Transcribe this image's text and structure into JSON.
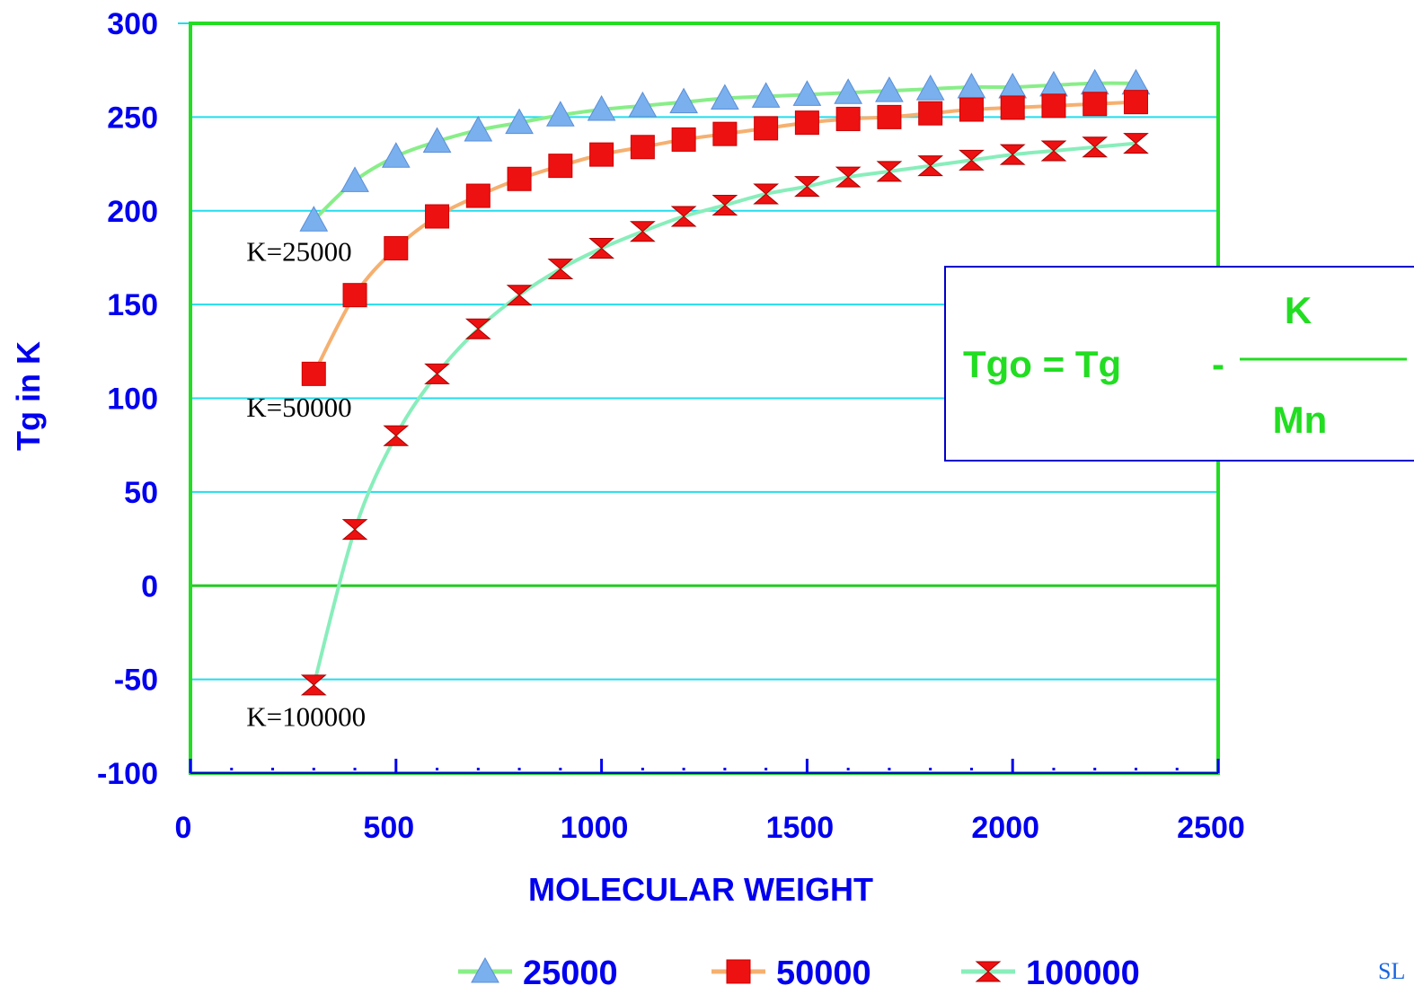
{
  "colors": {
    "plot_border": "#22dd22",
    "gridline": "#22ddee",
    "zero_line": "#22cc22",
    "axis_text": "#0000ee",
    "equation_box": "#0000cc",
    "equation_text": "#22dd22",
    "series_25000_line": "#88ee88",
    "series_25000_marker": "#7ab0ee",
    "series_50000_line": "#f5b070",
    "series_50000_marker": "#ee1111",
    "series_100000_line": "#88eebb",
    "series_100000_marker": "#ee1111"
  },
  "chart_data": {
    "type": "line",
    "xlabel": "MOLECULAR WEIGHT",
    "ylabel": "Tg in K",
    "xlim": [
      0,
      2500
    ],
    "ylim": [
      -100,
      300
    ],
    "xticks": [
      "0",
      "500",
      "1000",
      "1500",
      "2000",
      "2500"
    ],
    "yticks": [
      "300",
      "250",
      "200",
      "150",
      "100",
      "50",
      "0",
      "-50",
      "-100"
    ],
    "grid": true,
    "legend_position": "bottom",
    "x": [
      300,
      400,
      500,
      600,
      700,
      800,
      900,
      1000,
      1100,
      1200,
      1300,
      1400,
      1500,
      1600,
      1700,
      1800,
      1900,
      2000,
      2100,
      2200,
      2300
    ],
    "series": [
      {
        "name": "25000",
        "marker": "triangle",
        "values": [
          195,
          216,
          229,
          237,
          243,
          247,
          251,
          254,
          256,
          258,
          260,
          261,
          262,
          263,
          264,
          265,
          266,
          266,
          267,
          268,
          268
        ]
      },
      {
        "name": "50000",
        "marker": "square",
        "values": [
          113,
          155,
          180,
          197,
          208,
          217,
          224,
          230,
          234,
          238,
          241,
          244,
          247,
          249,
          250,
          252,
          254,
          255,
          256,
          257,
          258
        ]
      },
      {
        "name": "100000",
        "marker": "hourglass",
        "values": [
          -53,
          30,
          80,
          113,
          137,
          155,
          169,
          180,
          189,
          197,
          203,
          209,
          213,
          218,
          221,
          224,
          227,
          230,
          232,
          234,
          236
        ]
      }
    ],
    "annotations": [
      {
        "text": "K=25000",
        "x": 300,
        "y": 178
      },
      {
        "text": "K=50000",
        "x": 300,
        "y": 95
      },
      {
        "text": "K=100000",
        "x": 300,
        "y": -70
      }
    ]
  },
  "equation": {
    "lhs": "Tgo  = Tg",
    "minus": "-",
    "numerator": "K",
    "denominator": "Mn"
  },
  "corner_text": "SL"
}
